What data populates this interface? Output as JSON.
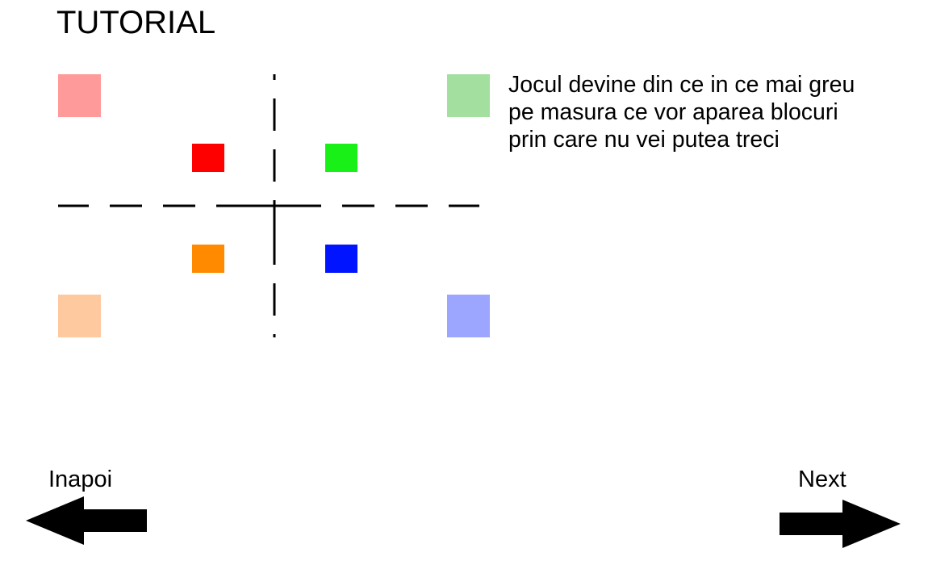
{
  "screen": {
    "title": "TUTORIAL",
    "description": "Jocul devine din ce in ce mai greu\npe masura ce vor aparea blocuri\nprin care nu vei putea treci"
  },
  "board": {
    "corner_blocks": [
      {
        "name": "corner-block-top-left",
        "color": "#ff9a9a"
      },
      {
        "name": "corner-block-top-right",
        "color": "#a3e0a0"
      },
      {
        "name": "corner-block-bottom-left",
        "color": "#ffc9a0"
      },
      {
        "name": "corner-block-bottom-right",
        "color": "#9ca6ff"
      }
    ],
    "inner_blocks": [
      {
        "name": "block-red",
        "color": "#ff0000"
      },
      {
        "name": "block-green",
        "color": "#18f018"
      },
      {
        "name": "block-orange",
        "color": "#ff8a00"
      },
      {
        "name": "block-blue",
        "color": "#0014ff"
      }
    ]
  },
  "navigation": {
    "back_label": "Inapoi",
    "next_label": "Next",
    "back_icon": "arrow-left-icon",
    "next_icon": "arrow-right-icon"
  }
}
